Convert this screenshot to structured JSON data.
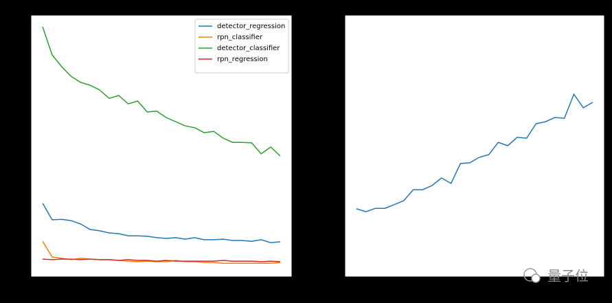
{
  "chart_data": [
    {
      "type": "line",
      "categories": [
        null,
        null,
        null,
        null,
        null,
        null,
        null,
        null,
        null,
        null,
        null,
        null,
        null,
        null,
        null,
        null,
        null,
        null,
        null,
        null,
        null,
        null,
        null,
        null,
        null,
        null
      ],
      "ylim": [
        0,
        100
      ],
      "legend": "upper right",
      "series": [
        {
          "name": "detector_regression",
          "color": "#1f77b4",
          "values": [
            28.1,
            21.8,
            22.0,
            21.5,
            20.2,
            18.1,
            17.6,
            16.8,
            16.5,
            15.7,
            15.7,
            15.5,
            15.0,
            14.7,
            15.0,
            14.4,
            15.0,
            14.2,
            14.2,
            14.4,
            13.9,
            13.9,
            13.6,
            14.2,
            13.1,
            13.4
          ]
        },
        {
          "name": "rpn_classifier",
          "color": "#ff7f0e",
          "values": [
            13.6,
            7.6,
            7.1,
            6.6,
            7.1,
            6.8,
            6.6,
            6.6,
            6.3,
            6.0,
            5.8,
            6.0,
            5.8,
            5.8,
            6.3,
            5.8,
            5.8,
            5.5,
            5.5,
            5.2,
            5.2,
            5.2,
            5.2,
            5.2,
            5.2,
            5.5
          ]
        },
        {
          "name": "detector_classifier",
          "color": "#2ca02c",
          "values": [
            95.5,
            84.8,
            80.3,
            76.6,
            74.3,
            73.2,
            71.4,
            68.2,
            69.3,
            66.1,
            67.2,
            63.0,
            63.3,
            60.9,
            59.3,
            57.7,
            57.0,
            55.1,
            55.6,
            53.0,
            51.4,
            51.4,
            51.2,
            47.0,
            49.6,
            46.2
          ]
        },
        {
          "name": "rpn_regression",
          "color": "#d62728",
          "values": [
            6.8,
            6.6,
            6.8,
            6.8,
            6.6,
            6.8,
            6.6,
            6.6,
            6.3,
            6.6,
            6.3,
            6.3,
            6.0,
            6.3,
            6.0,
            6.0,
            6.0,
            6.0,
            6.0,
            6.3,
            6.0,
            6.0,
            6.0,
            5.8,
            6.0,
            5.8
          ]
        }
      ]
    },
    {
      "type": "line",
      "categories": [
        null,
        null,
        null,
        null,
        null,
        null,
        null,
        null,
        null,
        null,
        null,
        null,
        null,
        null,
        null,
        null,
        null,
        null,
        null,
        null,
        null,
        null,
        null,
        null,
        null,
        null
      ],
      "ylim": [
        0,
        100
      ],
      "series": [
        {
          "color": "#1f77b4",
          "values": [
            26.0,
            24.9,
            26.2,
            26.2,
            27.6,
            29.1,
            33.3,
            33.3,
            34.9,
            37.8,
            35.7,
            43.3,
            43.6,
            45.7,
            46.7,
            51.4,
            50.1,
            53.3,
            53.0,
            58.5,
            59.3,
            60.9,
            60.6,
            69.8,
            64.6,
            66.7
          ]
        }
      ]
    }
  ],
  "watermark": "量子位"
}
